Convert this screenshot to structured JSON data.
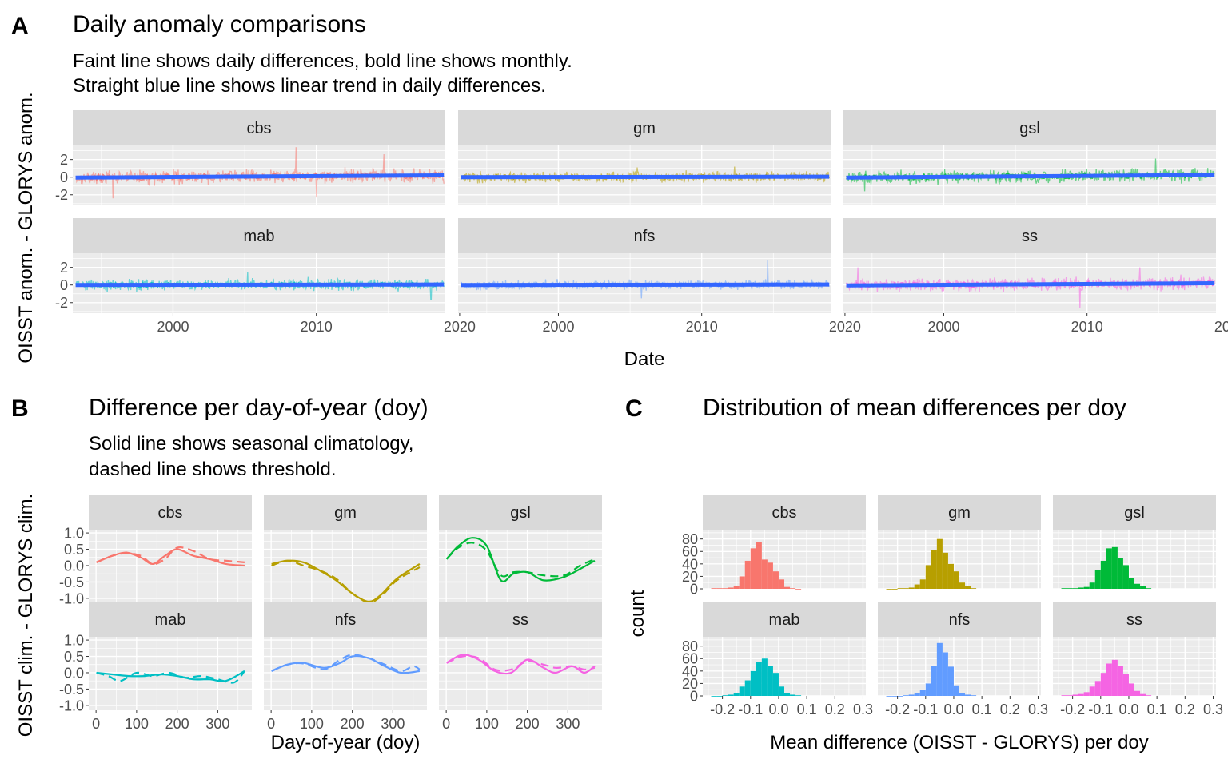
{
  "series_colors": {
    "cbs": "#F8766D",
    "gm": "#B79F00",
    "gsl": "#00BA38",
    "mab": "#00BFC4",
    "nfs": "#619CFF",
    "ss": "#F564E3"
  },
  "trend_color": "#3366FF",
  "chart_data": [
    {
      "panel": "A",
      "type": "line",
      "title": "Daily anomaly comparisons",
      "subtitle": [
        "Faint line shows daily differences, bold line shows monthly.",
        "Straight blue line shows linear trend in daily differences."
      ],
      "xlabel": "Date",
      "ylabel": "OISST anom. - GLORYS anom.",
      "x_ticks": [
        2000,
        2010,
        2020
      ],
      "y_ticks": [
        2,
        0,
        -2
      ],
      "y_tick_labels": [
        "2",
        "0",
        "-2"
      ],
      "xlim": [
        1993,
        2019
      ],
      "ylim": [
        -3.2,
        3.6
      ],
      "grid": true,
      "series": [
        {
          "name": "cbs",
          "trend": [
            -0.05,
            0.2
          ],
          "daily_sd": 0.55,
          "spikes": [
            [
              2008.6,
              3.4
            ],
            [
              2014.7,
              2.6
            ],
            [
              1995.8,
              -2.4
            ],
            [
              2010.0,
              -2.3
            ]
          ]
        },
        {
          "name": "gm",
          "trend": [
            0.0,
            0.05
          ],
          "daily_sd": 0.4,
          "spikes": [
            [
              2005.5,
              1.1
            ],
            [
              2012.3,
              1.2
            ]
          ]
        },
        {
          "name": "gsl",
          "trend": [
            -0.05,
            0.25
          ],
          "daily_sd": 0.5,
          "spikes": [
            [
              2014.8,
              2.1
            ],
            [
              1994.5,
              -1.6
            ]
          ]
        },
        {
          "name": "mab",
          "trend": [
            0.0,
            0.05
          ],
          "daily_sd": 0.45,
          "spikes": [
            [
              2005.2,
              1.5
            ],
            [
              2018.0,
              -1.6
            ]
          ]
        },
        {
          "name": "nfs",
          "trend": [
            0.0,
            0.05
          ],
          "daily_sd": 0.35,
          "spikes": [
            [
              2014.6,
              2.8
            ],
            [
              2005.8,
              -1.5
            ]
          ]
        },
        {
          "name": "ss",
          "trend": [
            -0.05,
            0.2
          ],
          "daily_sd": 0.5,
          "spikes": [
            [
              2009.5,
              -2.6
            ],
            [
              1994.0,
              2.0
            ],
            [
              2013.7,
              2.0
            ]
          ]
        }
      ]
    },
    {
      "panel": "B",
      "type": "line",
      "title": "Difference per day-of-year (doy)",
      "subtitle": [
        "Solid line shows seasonal climatology,",
        "dashed line shows threshold."
      ],
      "xlabel": "Day-of-year (doy)",
      "ylabel": "OISST clim. - GLORYS clim.",
      "x_ticks": [
        0,
        100,
        200,
        300
      ],
      "y_ticks": [
        1.0,
        0.5,
        0.0,
        -0.5,
        -1.0
      ],
      "y_tick_labels": [
        "1.0",
        "0.5",
        "0.0",
        "-0.5",
        "-1.0"
      ],
      "xlim": [
        -18,
        384
      ],
      "ylim": [
        -1.15,
        1.1
      ],
      "grid": true,
      "series": [
        {
          "name": "cbs",
          "clim": [
            [
              1,
              0.1
            ],
            [
              40,
              0.3
            ],
            [
              75,
              0.4
            ],
            [
              110,
              0.25
            ],
            [
              140,
              0.05
            ],
            [
              170,
              0.3
            ],
            [
              200,
              0.5
            ],
            [
              240,
              0.3
            ],
            [
              280,
              0.2
            ],
            [
              320,
              0.05
            ],
            [
              366,
              0.0
            ]
          ],
          "thresh": [
            [
              1,
              0.1
            ],
            [
              40,
              0.3
            ],
            [
              75,
              0.38
            ],
            [
              110,
              0.3
            ],
            [
              140,
              0.05
            ],
            [
              170,
              0.2
            ],
            [
              200,
              0.55
            ],
            [
              240,
              0.45
            ],
            [
              280,
              0.2
            ],
            [
              320,
              0.15
            ],
            [
              366,
              0.1
            ]
          ]
        },
        {
          "name": "gm",
          "clim": [
            [
              1,
              0.05
            ],
            [
              40,
              0.15
            ],
            [
              80,
              0.1
            ],
            [
              120,
              -0.15
            ],
            [
              160,
              -0.45
            ],
            [
              200,
              -0.85
            ],
            [
              240,
              -1.1
            ],
            [
              270,
              -0.9
            ],
            [
              310,
              -0.4
            ],
            [
              366,
              0.05
            ]
          ],
          "thresh": [
            [
              1,
              0.0
            ],
            [
              40,
              0.15
            ],
            [
              80,
              0.0
            ],
            [
              120,
              -0.15
            ],
            [
              160,
              -0.4
            ],
            [
              200,
              -0.85
            ],
            [
              240,
              -1.12
            ],
            [
              270,
              -0.95
            ],
            [
              310,
              -0.45
            ],
            [
              366,
              -0.05
            ]
          ]
        },
        {
          "name": "gsl",
          "clim": [
            [
              1,
              0.2
            ],
            [
              30,
              0.6
            ],
            [
              65,
              0.85
            ],
            [
              100,
              0.6
            ],
            [
              135,
              -0.45
            ],
            [
              165,
              -0.25
            ],
            [
              200,
              -0.2
            ],
            [
              240,
              -0.45
            ],
            [
              290,
              -0.35
            ],
            [
              330,
              -0.1
            ],
            [
              366,
              0.15
            ]
          ],
          "thresh": [
            [
              1,
              0.2
            ],
            [
              30,
              0.55
            ],
            [
              65,
              0.7
            ],
            [
              100,
              0.45
            ],
            [
              135,
              -0.3
            ],
            [
              165,
              -0.2
            ],
            [
              200,
              -0.2
            ],
            [
              240,
              -0.3
            ],
            [
              290,
              -0.3
            ],
            [
              330,
              0.0
            ],
            [
              366,
              0.2
            ]
          ]
        },
        {
          "name": "mab",
          "clim": [
            [
              1,
              0.0
            ],
            [
              40,
              -0.05
            ],
            [
              80,
              -0.1
            ],
            [
              120,
              -0.1
            ],
            [
              160,
              -0.05
            ],
            [
              200,
              -0.1
            ],
            [
              240,
              -0.2
            ],
            [
              280,
              -0.2
            ],
            [
              320,
              -0.25
            ],
            [
              366,
              0.05
            ]
          ],
          "thresh": [
            [
              1,
              0.0
            ],
            [
              30,
              -0.1
            ],
            [
              60,
              -0.25
            ],
            [
              100,
              0.0
            ],
            [
              140,
              -0.1
            ],
            [
              180,
              0.0
            ],
            [
              220,
              -0.15
            ],
            [
              260,
              -0.1
            ],
            [
              300,
              -0.2
            ],
            [
              340,
              -0.3
            ],
            [
              366,
              0.05
            ]
          ]
        },
        {
          "name": "nfs",
          "clim": [
            [
              1,
              0.05
            ],
            [
              40,
              0.25
            ],
            [
              80,
              0.3
            ],
            [
              130,
              0.15
            ],
            [
              170,
              0.3
            ],
            [
              200,
              0.5
            ],
            [
              240,
              0.45
            ],
            [
              280,
              0.2
            ],
            [
              320,
              0.0
            ],
            [
              366,
              0.05
            ]
          ],
          "thresh": [
            [
              1,
              0.05
            ],
            [
              40,
              0.25
            ],
            [
              80,
              0.28
            ],
            [
              130,
              0.1
            ],
            [
              170,
              0.4
            ],
            [
              200,
              0.55
            ],
            [
              240,
              0.45
            ],
            [
              280,
              0.25
            ],
            [
              320,
              0.05
            ],
            [
              350,
              0.2
            ],
            [
              366,
              0.1
            ]
          ]
        },
        {
          "name": "ss",
          "clim": [
            [
              1,
              0.3
            ],
            [
              40,
              0.55
            ],
            [
              80,
              0.4
            ],
            [
              120,
              0.05
            ],
            [
              160,
              0.0
            ],
            [
              200,
              0.4
            ],
            [
              240,
              0.15
            ],
            [
              270,
              0.0
            ],
            [
              310,
              0.2
            ],
            [
              340,
              0.0
            ],
            [
              366,
              0.2
            ]
          ],
          "thresh": [
            [
              1,
              0.3
            ],
            [
              40,
              0.5
            ],
            [
              80,
              0.45
            ],
            [
              120,
              0.1
            ],
            [
              160,
              0.1
            ],
            [
              200,
              0.35
            ],
            [
              240,
              0.25
            ],
            [
              270,
              0.15
            ],
            [
              310,
              0.2
            ],
            [
              340,
              0.1
            ],
            [
              366,
              0.15
            ]
          ]
        }
      ]
    },
    {
      "panel": "C",
      "type": "bar",
      "title": "Distribution of mean differences per doy",
      "xlabel": "Mean difference (OISST - GLORYS) per doy",
      "ylabel": "count",
      "x_ticks": [
        -0.2,
        -0.1,
        0.0,
        0.1,
        0.2,
        0.3
      ],
      "x_tick_labels": [
        "-0.2",
        "-0.1",
        "0.0",
        "0.1",
        "0.2",
        "0.3"
      ],
      "y_ticks": [
        80,
        60,
        40,
        20,
        0
      ],
      "y_tick_labels": [
        "80",
        "60",
        "40",
        "20",
        "0"
      ],
      "xlim": [
        -0.27,
        0.31
      ],
      "ylim": [
        0,
        95
      ],
      "bin_width": 0.02,
      "bin_start": -0.24,
      "grid": true,
      "series": [
        {
          "name": "cbs",
          "values": [
            1,
            1,
            1,
            2,
            5,
            20,
            45,
            65,
            75,
            47,
            42,
            28,
            15,
            3,
            1,
            0
          ]
        },
        {
          "name": "gm",
          "values": [
            0,
            0,
            1,
            1,
            2,
            7,
            15,
            38,
            62,
            80,
            58,
            40,
            28,
            10,
            5,
            1
          ]
        },
        {
          "name": "gsl",
          "values": [
            1,
            1,
            1,
            2,
            3,
            10,
            30,
            45,
            65,
            67,
            50,
            38,
            17,
            8,
            4,
            1
          ]
        },
        {
          "name": "mab",
          "values": [
            0,
            0,
            1,
            2,
            5,
            15,
            25,
            40,
            55,
            60,
            48,
            37,
            15,
            5,
            2,
            1
          ]
        },
        {
          "name": "nfs",
          "values": [
            0,
            0,
            0,
            1,
            2,
            5,
            10,
            20,
            48,
            85,
            70,
            47,
            17,
            5,
            2,
            1
          ]
        },
        {
          "name": "ss",
          "values": [
            1,
            1,
            2,
            3,
            6,
            15,
            24,
            37,
            52,
            58,
            48,
            35,
            20,
            8,
            3,
            1
          ]
        }
      ]
    }
  ],
  "panel_letters": [
    "A",
    "B",
    "C"
  ]
}
